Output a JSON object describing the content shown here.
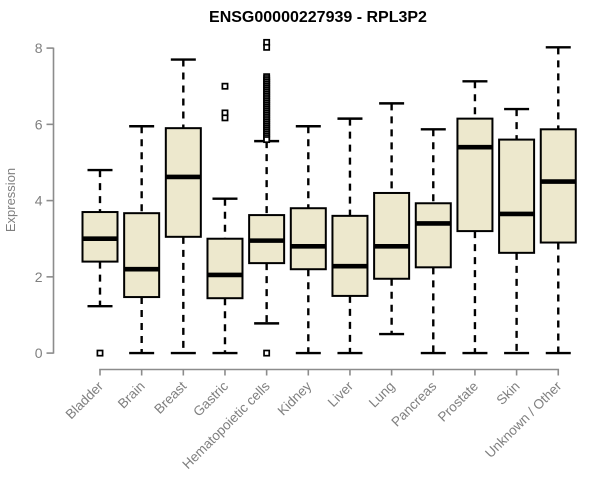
{
  "chart_data": {
    "type": "boxplot",
    "title": "ENSG00000227939 - RPL3P2",
    "xlabel": "",
    "ylabel": "Expression",
    "ylim": [
      0,
      8
    ],
    "yticks": [
      0,
      2,
      4,
      6,
      8
    ],
    "grid": false,
    "legend": "none",
    "box_fill_color": "#EDE8CD",
    "box_border_color": "#000000",
    "axis_color": "#8c8c8c",
    "label_color": "#7f7f7f",
    "categories": [
      "Bladder",
      "Brain",
      "Breast",
      "Gastric",
      "Hematopoietic cells",
      "Kidney",
      "Liver",
      "Lung",
      "Pancreas",
      "Prostate",
      "Skin",
      "Unknown / Other"
    ],
    "series": [
      {
        "name": "Bladder",
        "whisker_low": 1.23,
        "q1": 2.4,
        "median": 3.0,
        "q3": 3.7,
        "whisker_high": 4.8,
        "outliers": [
          0.0
        ]
      },
      {
        "name": "Brain",
        "whisker_low": 0.0,
        "q1": 1.47,
        "median": 2.2,
        "q3": 3.67,
        "whisker_high": 5.95,
        "outliers": []
      },
      {
        "name": "Breast",
        "whisker_low": 0.0,
        "q1": 3.05,
        "median": 4.62,
        "q3": 5.9,
        "whisker_high": 7.7,
        "outliers": []
      },
      {
        "name": "Gastric",
        "whisker_low": 0.0,
        "q1": 1.44,
        "median": 2.05,
        "q3": 3.0,
        "whisker_high": 4.05,
        "outliers": [
          7.0,
          6.3,
          6.17
        ]
      },
      {
        "name": "Hematopoietic cells",
        "whisker_low": 0.78,
        "q1": 2.36,
        "median": 2.95,
        "q3": 3.62,
        "whisker_high": 5.56,
        "outliers": [
          8.15,
          8.02,
          7.25,
          7.2,
          7.15,
          7.1,
          7.05,
          7.0,
          6.95,
          6.9,
          6.85,
          6.8,
          6.75,
          6.7,
          6.65,
          6.6,
          6.55,
          6.5,
          6.45,
          6.4,
          6.35,
          6.3,
          6.25,
          6.2,
          6.15,
          6.1,
          6.05,
          6.0,
          5.95,
          5.9,
          5.85,
          5.8,
          5.75,
          5.7,
          5.65,
          5.6,
          0.0
        ]
      },
      {
        "name": "Kidney",
        "whisker_low": 0.0,
        "q1": 2.2,
        "median": 2.8,
        "q3": 3.8,
        "whisker_high": 5.95,
        "outliers": []
      },
      {
        "name": "Liver",
        "whisker_low": 0.0,
        "q1": 1.5,
        "median": 2.28,
        "q3": 3.6,
        "whisker_high": 6.15,
        "outliers": []
      },
      {
        "name": "Lung",
        "whisker_low": 0.5,
        "q1": 1.95,
        "median": 2.8,
        "q3": 4.2,
        "whisker_high": 6.55,
        "outliers": []
      },
      {
        "name": "Pancreas",
        "whisker_low": 0.0,
        "q1": 2.25,
        "median": 3.4,
        "q3": 3.93,
        "whisker_high": 5.87,
        "outliers": []
      },
      {
        "name": "Prostate",
        "whisker_low": 0.0,
        "q1": 3.2,
        "median": 5.4,
        "q3": 6.15,
        "whisker_high": 7.13,
        "outliers": []
      },
      {
        "name": "Skin",
        "whisker_low": 0.0,
        "q1": 2.63,
        "median": 3.65,
        "q3": 5.6,
        "whisker_high": 6.4,
        "outliers": []
      },
      {
        "name": "Unknown / Other",
        "whisker_low": 0.0,
        "q1": 2.9,
        "median": 4.5,
        "q3": 5.87,
        "whisker_high": 8.02,
        "outliers": []
      }
    ]
  }
}
